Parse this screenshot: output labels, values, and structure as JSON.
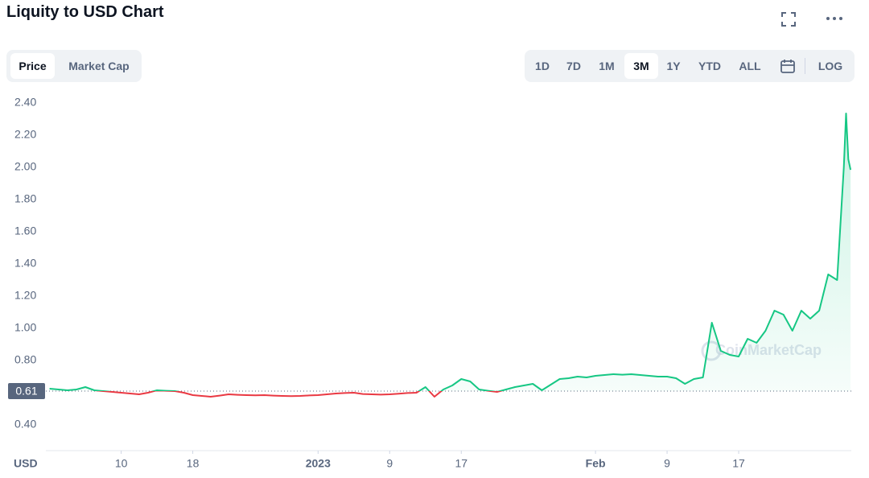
{
  "header": {
    "title": "Liquity to USD Chart"
  },
  "tabs": [
    "Price",
    "Market Cap"
  ],
  "active_tab": 0,
  "ranges": [
    "1D",
    "7D",
    "1M",
    "3M",
    "1Y",
    "YTD",
    "ALL"
  ],
  "active_range": 3,
  "log_button": "LOG",
  "chart_data": {
    "type": "line",
    "y_unit_label": "USD",
    "watermark": "CoinMarketCap",
    "x": [
      "2022-12-02",
      "2022-12-03",
      "2022-12-04",
      "2022-12-05",
      "2022-12-06",
      "2022-12-07",
      "2022-12-08",
      "2022-12-09",
      "2022-12-10",
      "2022-12-11",
      "2022-12-12",
      "2022-12-13",
      "2022-12-14",
      "2022-12-15",
      "2022-12-16",
      "2022-12-17",
      "2022-12-18",
      "2022-12-19",
      "2022-12-20",
      "2022-12-21",
      "2022-12-22",
      "2022-12-23",
      "2022-12-24",
      "2022-12-25",
      "2022-12-26",
      "2022-12-27",
      "2022-12-28",
      "2022-12-29",
      "2022-12-30",
      "2022-12-31",
      "2023-01-01",
      "2023-01-02",
      "2023-01-03",
      "2023-01-04",
      "2023-01-05",
      "2023-01-06",
      "2023-01-07",
      "2023-01-08",
      "2023-01-09",
      "2023-01-10",
      "2023-01-11",
      "2023-01-12",
      "2023-01-13",
      "2023-01-14",
      "2023-01-15",
      "2023-01-16",
      "2023-01-17",
      "2023-01-18",
      "2023-01-19",
      "2023-01-20",
      "2023-01-21",
      "2023-01-22",
      "2023-01-23",
      "2023-01-24",
      "2023-01-25",
      "2023-01-26",
      "2023-01-27",
      "2023-01-28",
      "2023-01-29",
      "2023-01-30",
      "2023-01-31",
      "2023-02-01",
      "2023-02-02",
      "2023-02-03",
      "2023-02-04",
      "2023-02-05",
      "2023-02-06",
      "2023-02-07",
      "2023-02-08",
      "2023-02-09",
      "2023-02-10",
      "2023-02-11",
      "2023-02-12",
      "2023-02-13",
      "2023-02-14",
      "2023-02-15",
      "2023-02-16",
      "2023-02-17",
      "2023-02-18",
      "2023-02-19",
      "2023-02-20",
      "2023-02-21",
      "2023-02-22",
      "2023-02-23",
      "2023-02-24",
      "2023-02-25",
      "2023-02-26",
      "2023-02-27",
      "2023-02-28",
      "2023-02-28T18:00",
      "2023-03-01T00:00",
      "2023-03-01T06:00",
      "2023-03-01T12:00"
    ],
    "series": [
      {
        "color": "#16c784",
        "values": [
          0.625,
          0.62,
          0.615,
          0.62,
          0.635,
          0.615,
          0.61,
          0.605,
          0.6,
          0.595,
          0.59,
          0.6,
          0.615,
          0.612,
          0.61,
          0.6,
          0.585,
          0.58,
          0.575,
          0.582,
          0.59,
          0.587,
          0.585,
          0.584,
          0.585,
          0.582,
          0.58,
          0.579,
          0.58,
          0.583,
          0.585,
          0.59,
          0.595,
          0.598,
          0.6,
          0.592,
          0.59,
          0.588,
          0.59,
          0.594,
          0.598,
          0.6,
          0.635,
          0.575,
          0.62,
          0.645,
          0.685,
          0.67,
          0.62,
          0.612,
          0.605,
          0.62,
          0.635,
          0.645,
          0.655,
          0.615,
          0.65,
          0.685,
          0.69,
          0.7,
          0.695,
          0.705,
          0.71,
          0.715,
          0.712,
          0.715,
          0.71,
          0.705,
          0.7,
          0.7,
          0.69,
          0.655,
          0.685,
          0.695,
          1.035,
          0.86,
          0.835,
          0.825,
          0.935,
          0.91,
          0.985,
          1.11,
          1.085,
          0.985,
          1.11,
          1.06,
          1.11,
          1.335,
          1.3,
          2.0,
          2.335,
          2.05,
          1.985
        ]
      }
    ],
    "below_color": "#ea3943",
    "reference_line": 0.61,
    "xlim": [
      "2022-12-01T14:00",
      "2023-03-01T14:00"
    ],
    "xticks": [
      {
        "value": "2022-12-10",
        "label": "10"
      },
      {
        "value": "2022-12-18",
        "label": "18"
      },
      {
        "value": "2023-01-01",
        "label": "2023"
      },
      {
        "value": "2023-01-09",
        "label": "9"
      },
      {
        "value": "2023-01-17",
        "label": "17"
      },
      {
        "value": "2023-02-01",
        "label": "Feb"
      },
      {
        "value": "2023-02-09",
        "label": "9"
      },
      {
        "value": "2023-02-17",
        "label": "17"
      }
    ],
    "ylim": [
      0.24,
      2.46
    ],
    "yticks": [
      {
        "value": 0.4,
        "label": "0.40"
      },
      {
        "value": 0.8,
        "label": "0.80"
      },
      {
        "value": 1.0,
        "label": "1.00"
      },
      {
        "value": 1.2,
        "label": "1.20"
      },
      {
        "value": 1.4,
        "label": "1.40"
      },
      {
        "value": 1.6,
        "label": "1.60"
      },
      {
        "value": 1.8,
        "label": "1.80"
      },
      {
        "value": 2.0,
        "label": "2.00"
      },
      {
        "value": 2.2,
        "label": "2.20"
      },
      {
        "value": 2.4,
        "label": "2.40"
      }
    ]
  }
}
